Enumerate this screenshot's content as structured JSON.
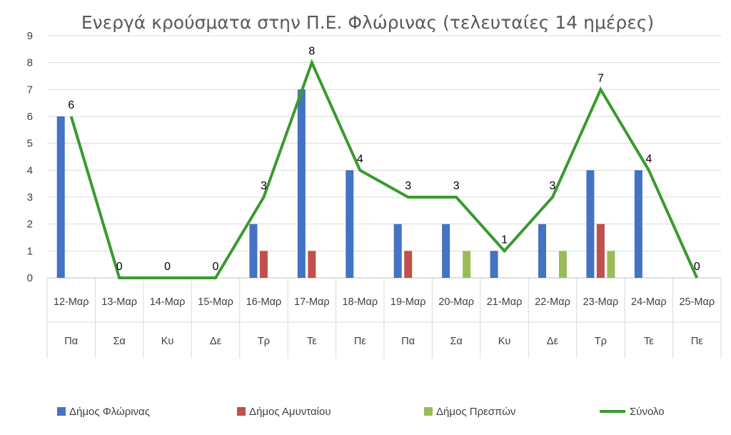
{
  "chart_data": {
    "type": "bar",
    "title": "Ενεργά κρούσματα στην Π.Ε. Φλώρινας (τελευταίες 14 ημέρες)",
    "categories": [
      "12-Μαρ",
      "13-Μαρ",
      "14-Μαρ",
      "15-Μαρ",
      "16-Μαρ",
      "17-Μαρ",
      "18-Μαρ",
      "19-Μαρ",
      "20-Μαρ",
      "21-Μαρ",
      "22-Μαρ",
      "23-Μαρ",
      "24-Μαρ",
      "25-Μαρ"
    ],
    "day_labels": [
      "Πα",
      "Σα",
      "Κυ",
      "Δε",
      "Τρ",
      "Τε",
      "Πε",
      "Πα",
      "Σα",
      "Κυ",
      "Δε",
      "Τρ",
      "Τε",
      "Πε"
    ],
    "ylim": [
      0,
      9
    ],
    "yticks": [
      0,
      1,
      2,
      3,
      4,
      5,
      6,
      7,
      8,
      9
    ],
    "grid": true,
    "legend_position": "bottom",
    "series": [
      {
        "name": "Δήμος Φλώρινας",
        "kind": "bar",
        "color": "#4472c4",
        "values": [
          6,
          0,
          0,
          0,
          2,
          7,
          4,
          2,
          2,
          1,
          2,
          4,
          4,
          0
        ]
      },
      {
        "name": "Δήμος Αμυνταίου",
        "kind": "bar",
        "color": "#c0504d",
        "values": [
          0,
          0,
          0,
          0,
          1,
          1,
          0,
          1,
          0,
          0,
          0,
          2,
          0,
          0
        ]
      },
      {
        "name": "Δήμος Πρεσπών",
        "kind": "bar",
        "color": "#9bbb59",
        "values": [
          0,
          0,
          0,
          0,
          0,
          0,
          0,
          0,
          1,
          0,
          1,
          1,
          0,
          0
        ]
      },
      {
        "name": "Σύνολο",
        "kind": "line",
        "color": "#3a9a2e",
        "values": [
          6,
          0,
          0,
          0,
          3,
          8,
          4,
          3,
          3,
          1,
          3,
          7,
          4,
          0
        ],
        "data_labels": true
      }
    ]
  }
}
